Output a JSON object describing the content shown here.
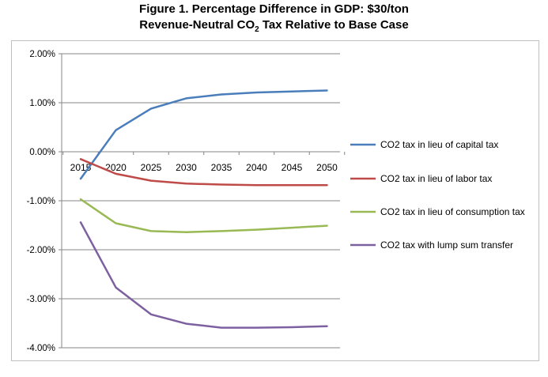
{
  "title": {
    "line1": "Figure 1. Percentage Difference in GDP: $30/ton",
    "line2_pre": "Revenue-Neutral CO",
    "line2_sub": "2",
    "line2_post": " Tax Relative to Base Case"
  },
  "chart_data": {
    "type": "line",
    "title": "Figure 1. Percentage Difference in GDP: $30/ton Revenue-Neutral CO2 Tax Relative to Base Case",
    "xlabel": "",
    "ylabel": "",
    "x": [
      "2015",
      "2020",
      "2025",
      "2030",
      "2035",
      "2040",
      "2045",
      "2050"
    ],
    "ylim": [
      -4.0,
      2.0
    ],
    "yticks": [
      2.0,
      1.0,
      0.0,
      -1.0,
      -2.0,
      -3.0,
      -4.0
    ],
    "ytick_labels": [
      "2.00%",
      "1.00%",
      "0.00%",
      "-1.00%",
      "-2.00%",
      "-3.00%",
      "-4.00%"
    ],
    "grid": true,
    "legend_position": "right",
    "series": [
      {
        "name": "CO2 tax in lieu of capital tax",
        "color": "#4a7ebb",
        "values": [
          -0.55,
          0.44,
          0.88,
          1.09,
          1.17,
          1.21,
          1.23,
          1.25
        ]
      },
      {
        "name": "CO2 tax in lieu of labor tax",
        "color": "#be4b48",
        "values": [
          -0.15,
          -0.45,
          -0.59,
          -0.65,
          -0.67,
          -0.68,
          -0.68,
          -0.68
        ]
      },
      {
        "name": "CO2 tax in lieu of consumption tax",
        "color": "#98b954",
        "values": [
          -0.97,
          -1.46,
          -1.62,
          -1.64,
          -1.62,
          -1.59,
          -1.55,
          -1.51
        ]
      },
      {
        "name": "CO2 tax with lump sum transfer",
        "color": "#7d60a0",
        "values": [
          -1.44,
          -2.77,
          -3.32,
          -3.51,
          -3.59,
          -3.59,
          -3.58,
          -3.56
        ]
      }
    ]
  }
}
